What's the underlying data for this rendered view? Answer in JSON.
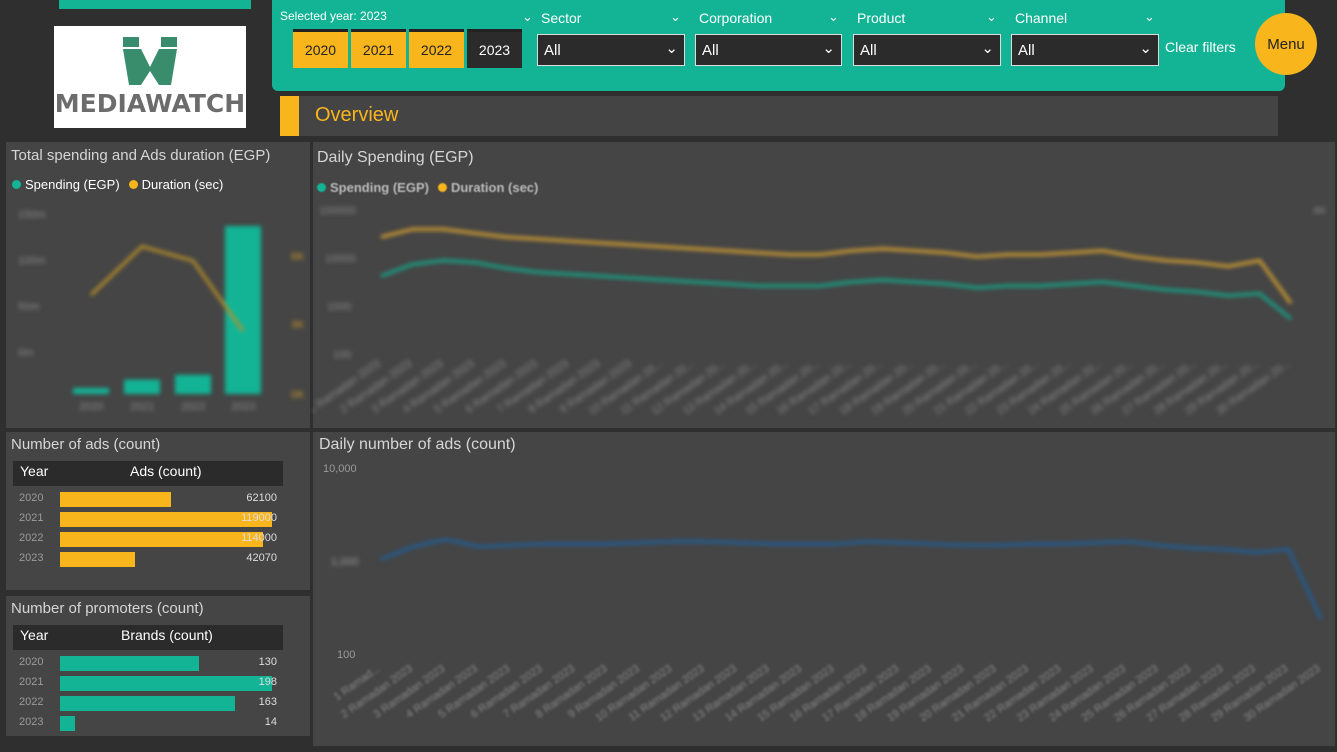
{
  "logo": {
    "text": "MEDIAWATCH"
  },
  "filters": {
    "selected_year_label": "Selected year: 2023",
    "years": [
      "2020",
      "2021",
      "2022",
      "2023"
    ],
    "active_year": "2023",
    "dropdowns": [
      {
        "label": "Sector",
        "value": "All"
      },
      {
        "label": "Corporation",
        "value": "All"
      },
      {
        "label": "Product",
        "value": "All"
      },
      {
        "label": "Channel",
        "value": "All"
      }
    ],
    "clear_label": "Clear filters",
    "menu_label": "Menu"
  },
  "overview": {
    "title": "Overview"
  },
  "colors": {
    "teal": "#13b496",
    "yellow": "#f9b51c",
    "blue": "#1f5f99"
  },
  "panels": {
    "total_spending": {
      "title": "Total spending and Ads duration (EGP)",
      "legend_spending": "Spending (EGP)",
      "legend_duration": "Duration (sec)"
    },
    "daily_spending": {
      "title": "Daily Spending (EGP)",
      "legend_spending": "Spending (EGP)",
      "legend_duration": "Duration (sec)"
    },
    "ads_count": {
      "title": "Number of ads (count)",
      "col_year": "Year",
      "col_value": "Ads (count)"
    },
    "promoters": {
      "title": "Number of promoters (count)",
      "col_year": "Year",
      "col_value": "Brands (count)"
    },
    "daily_ads": {
      "title": "Daily number of ads (count)",
      "y_top": "10,000",
      "y_mid": "1,000",
      "y_bottom": "100"
    }
  },
  "chart_data": [
    {
      "type": "bar",
      "title": "Total spending and Ads duration (EGP)",
      "categories": [
        "2020",
        "2021",
        "2022",
        "2023"
      ],
      "series": [
        {
          "name": "Spending (EGP)",
          "values": [
            5,
            12,
            16,
            140
          ]
        },
        {
          "name": "Duration (sec)",
          "values": [
            5.5,
            8.2,
            7.4,
            3.5
          ]
        }
      ]
    },
    {
      "type": "line",
      "title": "Daily Spending (EGP)",
      "categories": [
        "1 Ramadan 2023",
        "2 Ramadan 2023",
        "3 Ramadan 2023",
        "4 Ramadan 2023",
        "5 Ramadan 2023",
        "6 Ramadan 2023",
        "7 Ramadan 2023",
        "8 Ramadan 2023",
        "9 Ramadan 2023",
        "10 Ramadan 2023",
        "11 Ramadan 2023",
        "12 Ramadan 2023",
        "13 Ramadan 2023",
        "14 Ramadan 2023",
        "15 Ramadan 2023",
        "16 Ramadan 2023",
        "17 Ramadan 2023",
        "18 Ramadan 2023",
        "19 Ramadan 2023",
        "20 Ramadan 2023",
        "21 Ramadan 2023",
        "22 Ramadan 2023",
        "23 Ramadan 2023",
        "24 Ramadan 2023",
        "25 Ramadan 2023",
        "26 Ramadan 2023",
        "27 Ramadan 2023",
        "28 Ramadan 2023",
        "29 Ramadan 2023",
        "30 Ramadan 2023"
      ],
      "series": [
        {
          "name": "Spending (EGP)",
          "values": [
            62,
            68,
            70,
            69,
            66,
            64,
            63,
            62,
            61,
            60,
            59,
            58,
            57,
            57,
            57,
            59,
            60,
            59,
            58,
            56,
            57,
            57,
            58,
            59,
            57,
            55,
            54,
            52,
            53,
            40
          ]
        },
        {
          "name": "Duration (sec)",
          "values": [
            82,
            86,
            86,
            84,
            82,
            81,
            80,
            79,
            78,
            77,
            76,
            75,
            74,
            73,
            73,
            75,
            76,
            75,
            74,
            72,
            73,
            73,
            74,
            75,
            72,
            70,
            69,
            67,
            70,
            48
          ]
        }
      ]
    },
    {
      "type": "bar",
      "title": "Number of ads (count)",
      "categories": [
        "2020",
        "2021",
        "2022",
        "2023"
      ],
      "values": [
        62100,
        119000,
        114000,
        42070
      ]
    },
    {
      "type": "bar",
      "title": "Number of promoters (count)",
      "categories": [
        "2020",
        "2021",
        "2022",
        "2023"
      ],
      "values": [
        130,
        198,
        163,
        14
      ]
    },
    {
      "type": "line",
      "title": "Daily number of ads (count)",
      "ylim": [
        100,
        10000
      ],
      "categories": [
        "1 Ramad...",
        "2 Ramadan 2023",
        "3 Ramadan 2023",
        "4 Ramadan 2023",
        "5 Ramadan 2023",
        "6 Ramadan 2023",
        "7 Ramadan 2023",
        "8 Ramadan 2023",
        "9 Ramadan 2023",
        "10 Ramadan 2023",
        "11 Ramadan 2023",
        "12 Ramadan 2023",
        "13 Ramadan 2023",
        "14 Ramadan 2023",
        "15 Ramadan 2023",
        "16 Ramadan 2023",
        "17 Ramadan 2023",
        "18 Ramadan 2023",
        "19 Ramadan 2023",
        "20 Ramadan 2023",
        "21 Ramadan 2023",
        "22 Ramadan 2023",
        "23 Ramadan 2023",
        "24 Ramadan 2023",
        "25 Ramadan 2023",
        "26 Ramadan 2023",
        "27 Ramadan 2023",
        "28 Ramadan 2023",
        "29 Ramadan 2023",
        "30 Ramadan 2023"
      ],
      "series": [
        {
          "name": "Ads",
          "values": [
            1100,
            1500,
            1800,
            1500,
            1550,
            1600,
            1600,
            1600,
            1650,
            1700,
            1700,
            1650,
            1600,
            1600,
            1600,
            1700,
            1650,
            1600,
            1550,
            1550,
            1600,
            1600,
            1650,
            1700,
            1550,
            1450,
            1400,
            1300,
            1400,
            250
          ]
        }
      ]
    }
  ]
}
